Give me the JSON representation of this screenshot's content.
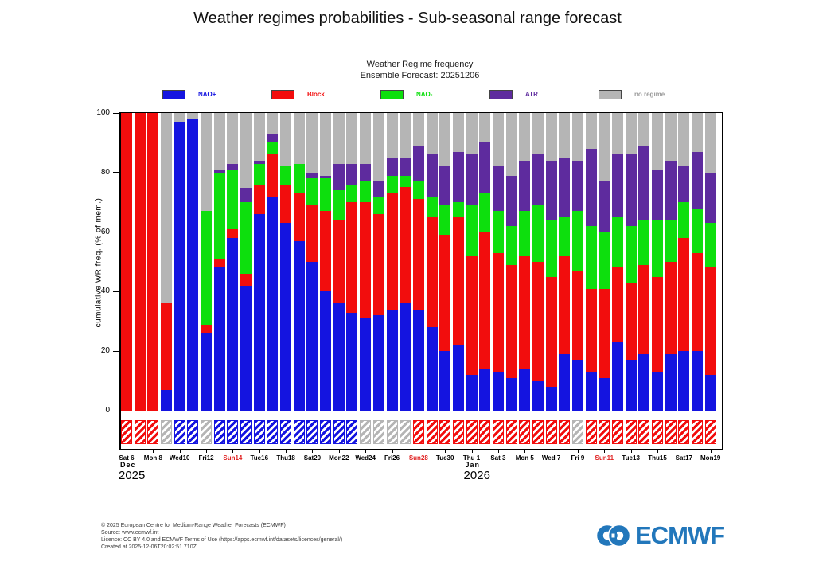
{
  "title": "Weather regimes probabilities - Sub-seasonal range forecast",
  "subtitle_line1": "Weather Regime frequency",
  "subtitle_line2": "Ensemble Forecast: 20251206",
  "colors": {
    "nao_plus": "#1414e0",
    "block": "#f20d0d",
    "nao_minus": "#0ddf0d",
    "atr": "#5e2b9e",
    "no_regime": "#b5b5b5",
    "sunday_label": "#e02020",
    "logo_blue": "#2277bb"
  },
  "legend": [
    {
      "label": "NAO+",
      "color": "#1414e0"
    },
    {
      "label": "Block",
      "color": "#f20d0d"
    },
    {
      "label": "NAO-",
      "color": "#0ddf0d"
    },
    {
      "label": "ATR",
      "color": "#5e2b9e"
    },
    {
      "label": "no regime",
      "color": "#9a9a9a"
    }
  ],
  "chart_data": {
    "type": "bar",
    "stacked": true,
    "title": "Weather Regime frequency — Ensemble Forecast: 20251206",
    "ylabel": "cumulative WR freq. (% of mem.)",
    "ylim": [
      0,
      100
    ],
    "yticks": [
      0,
      20,
      40,
      60,
      80,
      100
    ],
    "series_order": [
      "NAO+",
      "Block",
      "NAO-",
      "ATR",
      "no regime"
    ],
    "legend_position": "top",
    "grid": false,
    "bars": [
      {
        "label": "Sat 6",
        "sunday": false,
        "values": [
          0,
          100,
          0,
          0,
          0
        ],
        "dominant": "Block"
      },
      {
        "label": "",
        "sunday": false,
        "values": [
          0,
          100,
          0,
          0,
          0
        ],
        "dominant": "Block"
      },
      {
        "label": "Mon 8",
        "sunday": false,
        "values": [
          0,
          100,
          0,
          0,
          0
        ],
        "dominant": "Block"
      },
      {
        "label": "",
        "sunday": false,
        "values": [
          7,
          29,
          0,
          0,
          64
        ],
        "dominant": "none"
      },
      {
        "label": "Wed10",
        "sunday": false,
        "values": [
          97,
          0,
          0,
          0,
          3
        ],
        "dominant": "NAO+"
      },
      {
        "label": "",
        "sunday": false,
        "values": [
          98,
          0,
          0,
          0,
          2
        ],
        "dominant": "NAO+"
      },
      {
        "label": "Fri12",
        "sunday": false,
        "values": [
          26,
          3,
          38,
          0,
          33
        ],
        "dominant": "none"
      },
      {
        "label": "",
        "sunday": false,
        "values": [
          48,
          3,
          29,
          1,
          19
        ],
        "dominant": "NAO+"
      },
      {
        "label": "Sun14",
        "sunday": true,
        "values": [
          58,
          3,
          20,
          2,
          17
        ],
        "dominant": "NAO+"
      },
      {
        "label": "",
        "sunday": false,
        "values": [
          42,
          4,
          24,
          5,
          25
        ],
        "dominant": "NAO+"
      },
      {
        "label": "Tue16",
        "sunday": false,
        "values": [
          66,
          10,
          7,
          1,
          16
        ],
        "dominant": "NAO+"
      },
      {
        "label": "",
        "sunday": false,
        "values": [
          72,
          14,
          4,
          3,
          7
        ],
        "dominant": "NAO+"
      },
      {
        "label": "Thu18",
        "sunday": false,
        "values": [
          63,
          13,
          6,
          0,
          18
        ],
        "dominant": "NAO+"
      },
      {
        "label": "",
        "sunday": false,
        "values": [
          57,
          16,
          10,
          0,
          17
        ],
        "dominant": "NAO+"
      },
      {
        "label": "Sat20",
        "sunday": false,
        "values": [
          50,
          19,
          9,
          2,
          20
        ],
        "dominant": "NAO+"
      },
      {
        "label": "",
        "sunday": false,
        "values": [
          40,
          27,
          11,
          1,
          21
        ],
        "dominant": "NAO+"
      },
      {
        "label": "Mon22",
        "sunday": false,
        "values": [
          36,
          28,
          10,
          9,
          17
        ],
        "dominant": "NAO+"
      },
      {
        "label": "",
        "sunday": false,
        "values": [
          33,
          37,
          6,
          7,
          17
        ],
        "dominant": "NAO+"
      },
      {
        "label": "Wed24",
        "sunday": false,
        "values": [
          31,
          39,
          7,
          6,
          17
        ],
        "dominant": "none"
      },
      {
        "label": "",
        "sunday": false,
        "values": [
          32,
          34,
          6,
          5,
          23
        ],
        "dominant": "none"
      },
      {
        "label": "Fri26",
        "sunday": false,
        "values": [
          34,
          39,
          6,
          6,
          15
        ],
        "dominant": "none"
      },
      {
        "label": "",
        "sunday": false,
        "values": [
          36,
          39,
          4,
          6,
          15
        ],
        "dominant": "none"
      },
      {
        "label": "Sun28",
        "sunday": true,
        "values": [
          34,
          37,
          6,
          12,
          11
        ],
        "dominant": "Block"
      },
      {
        "label": "",
        "sunday": false,
        "values": [
          28,
          37,
          7,
          14,
          14
        ],
        "dominant": "Block"
      },
      {
        "label": "Tue30",
        "sunday": false,
        "values": [
          20,
          39,
          10,
          13,
          18
        ],
        "dominant": "Block"
      },
      {
        "label": "",
        "sunday": false,
        "values": [
          22,
          43,
          5,
          17,
          13
        ],
        "dominant": "Block"
      },
      {
        "label": "Thu 1",
        "sunday": false,
        "values": [
          12,
          40,
          17,
          17,
          14
        ],
        "dominant": "Block"
      },
      {
        "label": "",
        "sunday": false,
        "values": [
          14,
          46,
          13,
          17,
          10
        ],
        "dominant": "Block"
      },
      {
        "label": "Sat 3",
        "sunday": false,
        "values": [
          13,
          40,
          14,
          15,
          18
        ],
        "dominant": "Block"
      },
      {
        "label": "",
        "sunday": false,
        "values": [
          11,
          38,
          13,
          17,
          21
        ],
        "dominant": "Block"
      },
      {
        "label": "Mon 5",
        "sunday": false,
        "values": [
          14,
          38,
          15,
          17,
          16
        ],
        "dominant": "Block"
      },
      {
        "label": "",
        "sunday": false,
        "values": [
          10,
          40,
          19,
          17,
          14
        ],
        "dominant": "Block"
      },
      {
        "label": "Wed 7",
        "sunday": false,
        "values": [
          8,
          37,
          19,
          20,
          16
        ],
        "dominant": "Block"
      },
      {
        "label": "",
        "sunday": false,
        "values": [
          19,
          33,
          13,
          20,
          15
        ],
        "dominant": "Block"
      },
      {
        "label": "Fri 9",
        "sunday": false,
        "values": [
          17,
          30,
          20,
          17,
          16
        ],
        "dominant": "none"
      },
      {
        "label": "",
        "sunday": false,
        "values": [
          13,
          28,
          21,
          26,
          12
        ],
        "dominant": "Block"
      },
      {
        "label": "Sun11",
        "sunday": true,
        "values": [
          11,
          30,
          19,
          17,
          23
        ],
        "dominant": "Block"
      },
      {
        "label": "",
        "sunday": false,
        "values": [
          23,
          25,
          17,
          21,
          14
        ],
        "dominant": "Block"
      },
      {
        "label": "Tue13",
        "sunday": false,
        "values": [
          17,
          26,
          19,
          24,
          14
        ],
        "dominant": "Block"
      },
      {
        "label": "",
        "sunday": false,
        "values": [
          19,
          30,
          15,
          25,
          11
        ],
        "dominant": "Block"
      },
      {
        "label": "Thu15",
        "sunday": false,
        "values": [
          13,
          32,
          19,
          17,
          19
        ],
        "dominant": "Block"
      },
      {
        "label": "",
        "sunday": false,
        "values": [
          19,
          31,
          14,
          20,
          16
        ],
        "dominant": "Block"
      },
      {
        "label": "Sat17",
        "sunday": false,
        "values": [
          20,
          38,
          12,
          12,
          18
        ],
        "dominant": "Block"
      },
      {
        "label": "",
        "sunday": false,
        "values": [
          20,
          33,
          15,
          19,
          13
        ],
        "dominant": "Block"
      },
      {
        "label": "Mon19",
        "sunday": false,
        "values": [
          12,
          36,
          15,
          17,
          20
        ],
        "dominant": "Block"
      }
    ],
    "month_markers": [
      {
        "bar_index": 0,
        "month": "Dec",
        "year": "2025"
      },
      {
        "bar_index": 26,
        "month": "Jan",
        "year": "2026"
      }
    ]
  },
  "footer_lines": [
    "© 2025 European Centre for Medium-Range Weather Forecasts (ECMWF)",
    "Source: www.ecmwf.int",
    "Licence: CC BY 4.0 and ECMWF Terms of Use (https://apps.ecmwf.int/datasets/licences/general/)",
    "Created at 2025-12-06T20:02:51.710Z"
  ],
  "logo_text": "ECMWF"
}
